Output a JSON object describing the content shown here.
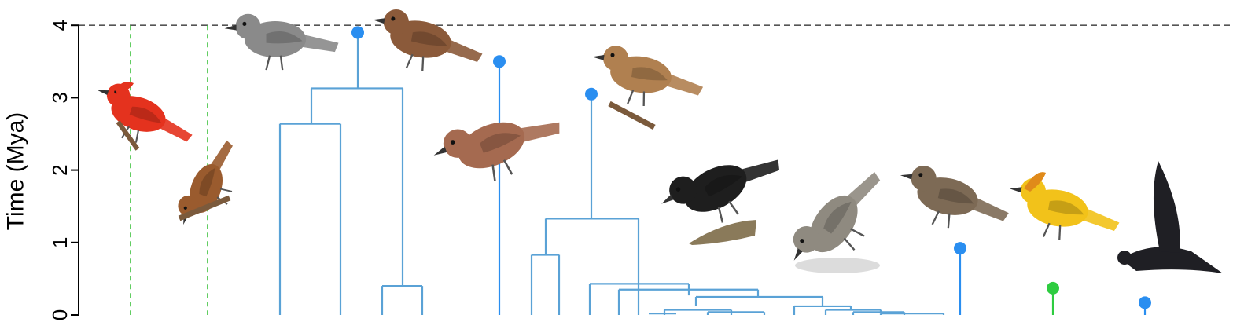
{
  "chart_data": {
    "type": "dendrogram",
    "ylabel": "Time (Mya)",
    "ylim": [
      0,
      4
    ],
    "yticks": [
      0,
      1,
      2,
      3,
      4
    ],
    "reference_line": 4,
    "colors": {
      "tree": "#5aa2d6",
      "node": "#2a8ef0",
      "green": "#2ecc40",
      "reference": "#555555",
      "dashed_green": "#3cc13c"
    },
    "dashed_colonizations": [
      {
        "name": "vermilion-flycatcher",
        "time": 4
      },
      {
        "name": "galapagos-cuckoo",
        "time": 4
      }
    ],
    "clades": [
      {
        "name": "mockingbirds",
        "root_time": 3.9,
        "depths": [
          3.13,
          2.64,
          0.4
        ]
      },
      {
        "name": "galapagos-dove",
        "root_time": 3.5
      },
      {
        "name": "darwins-finches",
        "root_time": 3.05,
        "depths": [
          1.33,
          0.83,
          0.43,
          0.35,
          0.25,
          0.12,
          0.07,
          0.04,
          0.02
        ]
      },
      {
        "name": "galapagos-flycatcher",
        "root_time": 0.92
      },
      {
        "name": "yellow-warbler",
        "root_time": 0.37,
        "color": "green"
      },
      {
        "name": "galapagos-martin",
        "root_time": 0.17
      }
    ],
    "birds": [
      {
        "name": "vermilion-flycatcher",
        "color": "#e4321e"
      },
      {
        "name": "galapagos-cuckoo",
        "color": "#9a5b2e"
      },
      {
        "name": "mockingbird-1",
        "color": "#8a8a8a"
      },
      {
        "name": "mockingbird-2",
        "color": "#8b5a3a"
      },
      {
        "name": "galapagos-dove",
        "color": "#a56a50"
      },
      {
        "name": "warbler-finch",
        "color": "#b08050"
      },
      {
        "name": "ground-finch",
        "color": "#1e1e1e"
      },
      {
        "name": "tree-finch",
        "color": "#8f8a80"
      },
      {
        "name": "flycatcher",
        "color": "#7d6a55"
      },
      {
        "name": "yellow-warbler",
        "color": "#f2c21a"
      },
      {
        "name": "martin",
        "color": "#1f1f24"
      }
    ]
  }
}
